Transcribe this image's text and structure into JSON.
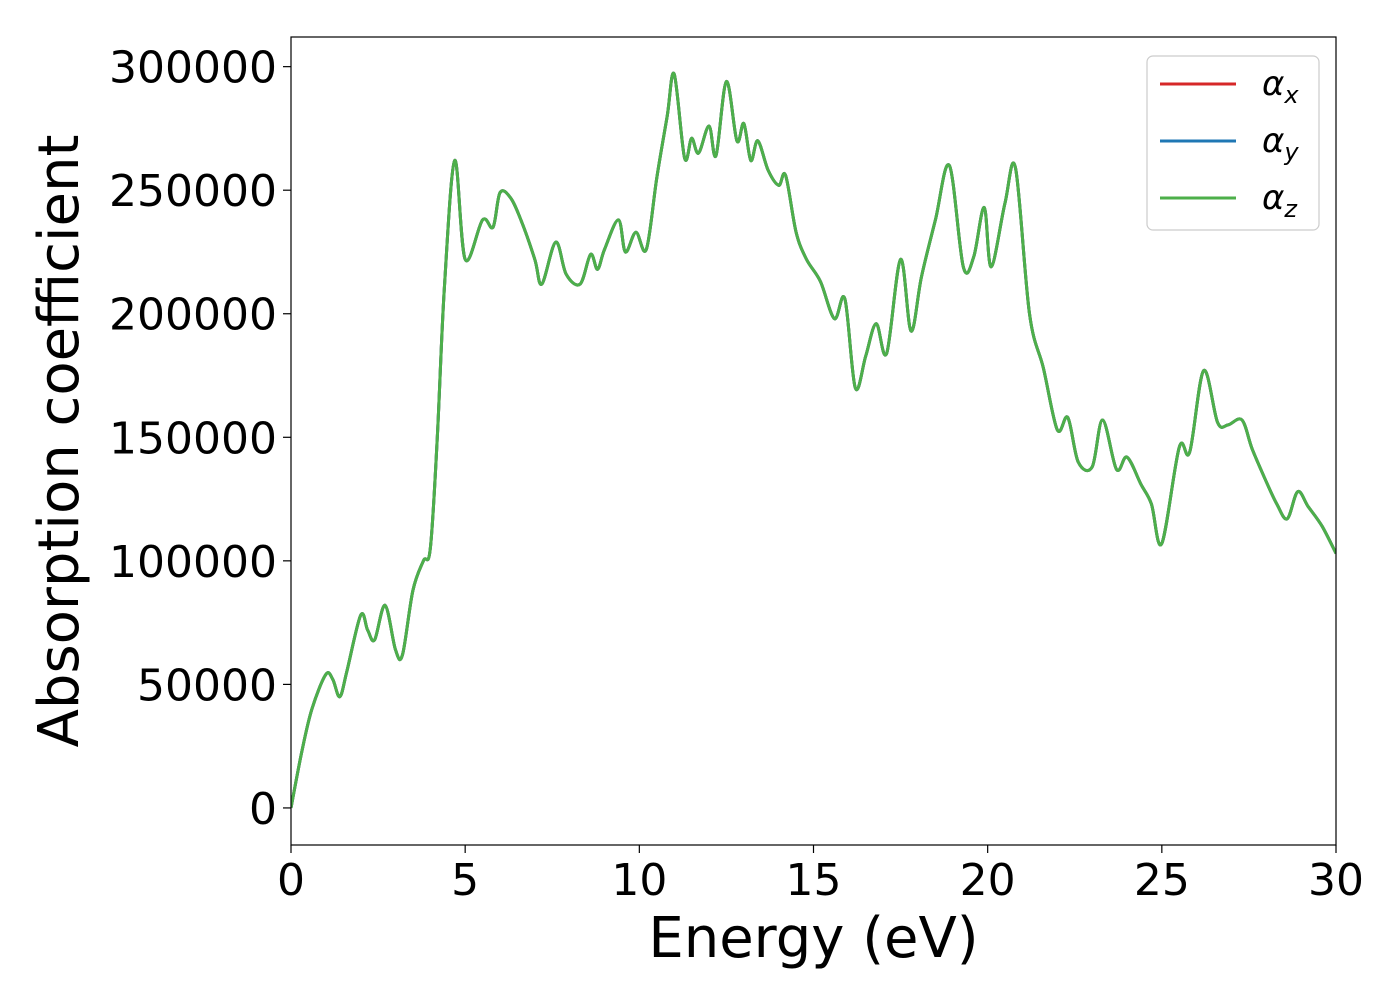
{
  "chart_data": {
    "type": "line",
    "title": "",
    "xlabel": "Energy (eV)",
    "ylabel": "Absorption coefficient",
    "xlim": [
      0,
      30
    ],
    "ylim": [
      -15000,
      312000
    ],
    "xticks": [
      0,
      5,
      10,
      15,
      20,
      25,
      30
    ],
    "yticks": [
      0,
      50000,
      100000,
      150000,
      200000,
      250000,
      300000
    ],
    "xtick_labels": [
      "0",
      "5",
      "10",
      "15",
      "20",
      "25",
      "30"
    ],
    "ytick_labels": [
      "0",
      "50000",
      "100000",
      "150000",
      "200000",
      "250000",
      "300000"
    ],
    "grid": false,
    "legend_position": "top-right",
    "legend": [
      {
        "symbol": "α",
        "subscript": "x",
        "color": "#d62728"
      },
      {
        "symbol": "α",
        "subscript": "y",
        "color": "#1f77b4"
      },
      {
        "symbol": "α",
        "subscript": "z",
        "color": "#4daf4a"
      }
    ],
    "series": [
      {
        "name": "αx",
        "color": "#d62728",
        "x": [
          0,
          0.3,
          0.6,
          1.0,
          1.2,
          1.4,
          1.6,
          2.0,
          2.2,
          2.4,
          2.7,
          3.0,
          3.2,
          3.5,
          3.8,
          4.0,
          4.2,
          4.4,
          4.7,
          5.0,
          5.5,
          5.8,
          6.0,
          6.3,
          6.6,
          7.0,
          7.2,
          7.6,
          7.9,
          8.3,
          8.6,
          8.8,
          9.0,
          9.4,
          9.6,
          9.9,
          10.2,
          10.5,
          10.8,
          11.0,
          11.3,
          11.5,
          11.7,
          12.0,
          12.2,
          12.5,
          12.8,
          13.0,
          13.2,
          13.4,
          13.7,
          14.0,
          14.2,
          14.5,
          14.8,
          15.2,
          15.6,
          15.9,
          16.2,
          16.5,
          16.8,
          17.1,
          17.5,
          17.8,
          18.1,
          18.5,
          18.9,
          19.3,
          19.6,
          19.9,
          20.1,
          20.5,
          20.8,
          21.2,
          21.6,
          22.0,
          22.3,
          22.6,
          23.0,
          23.3,
          23.7,
          24.0,
          24.4,
          24.7,
          25.0,
          25.5,
          25.8,
          26.2,
          26.6,
          26.9,
          27.3,
          27.6,
          28.0,
          28.3,
          28.6,
          28.9,
          29.2,
          29.6,
          30.0
        ],
        "y": [
          0,
          22000,
          40000,
          54000,
          52000,
          45000,
          55000,
          78000,
          72000,
          68000,
          82000,
          64000,
          62000,
          88000,
          100000,
          105000,
          150000,
          210000,
          262000,
          222000,
          238000,
          235000,
          249000,
          247000,
          238000,
          222000,
          212000,
          229000,
          216000,
          212000,
          224000,
          218000,
          226000,
          238000,
          225000,
          233000,
          226000,
          255000,
          280000,
          297000,
          263000,
          271000,
          265000,
          276000,
          264000,
          294000,
          270000,
          277000,
          262000,
          270000,
          258000,
          252000,
          256000,
          233000,
          222000,
          213000,
          198000,
          206000,
          170000,
          183000,
          196000,
          184000,
          222000,
          193000,
          215000,
          238000,
          260000,
          219000,
          223000,
          243000,
          219000,
          245000,
          259000,
          200000,
          178000,
          153000,
          158000,
          140000,
          138000,
          157000,
          137000,
          142000,
          131000,
          123000,
          107000,
          146000,
          144000,
          177000,
          156000,
          155000,
          157000,
          145000,
          132000,
          123000,
          117000,
          128000,
          122000,
          114000,
          103000
        ]
      },
      {
        "name": "αy",
        "color": "#1f77b4",
        "x": [
          0,
          0.3,
          0.6,
          1.0,
          1.2,
          1.4,
          1.6,
          2.0,
          2.2,
          2.4,
          2.7,
          3.0,
          3.2,
          3.5,
          3.8,
          4.0,
          4.2,
          4.4,
          4.7,
          5.0,
          5.5,
          5.8,
          6.0,
          6.3,
          6.6,
          7.0,
          7.2,
          7.6,
          7.9,
          8.3,
          8.6,
          8.8,
          9.0,
          9.4,
          9.6,
          9.9,
          10.2,
          10.5,
          10.8,
          11.0,
          11.3,
          11.5,
          11.7,
          12.0,
          12.2,
          12.5,
          12.8,
          13.0,
          13.2,
          13.4,
          13.7,
          14.0,
          14.2,
          14.5,
          14.8,
          15.2,
          15.6,
          15.9,
          16.2,
          16.5,
          16.8,
          17.1,
          17.5,
          17.8,
          18.1,
          18.5,
          18.9,
          19.3,
          19.6,
          19.9,
          20.1,
          20.5,
          20.8,
          21.2,
          21.6,
          22.0,
          22.3,
          22.6,
          23.0,
          23.3,
          23.7,
          24.0,
          24.4,
          24.7,
          25.0,
          25.5,
          25.8,
          26.2,
          26.6,
          26.9,
          27.3,
          27.6,
          28.0,
          28.3,
          28.6,
          28.9,
          29.2,
          29.6,
          30.0
        ],
        "y": [
          0,
          22000,
          40000,
          54000,
          52000,
          45000,
          55000,
          78000,
          72000,
          68000,
          82000,
          64000,
          62000,
          88000,
          100000,
          105000,
          150000,
          210000,
          262000,
          222000,
          238000,
          235000,
          249000,
          247000,
          238000,
          222000,
          212000,
          229000,
          216000,
          212000,
          224000,
          218000,
          226000,
          238000,
          225000,
          233000,
          226000,
          255000,
          280000,
          297000,
          263000,
          271000,
          265000,
          276000,
          264000,
          294000,
          270000,
          277000,
          262000,
          270000,
          258000,
          252000,
          256000,
          233000,
          222000,
          213000,
          198000,
          206000,
          170000,
          183000,
          196000,
          184000,
          222000,
          193000,
          215000,
          238000,
          260000,
          219000,
          223000,
          243000,
          219000,
          245000,
          259000,
          200000,
          178000,
          153000,
          158000,
          140000,
          138000,
          157000,
          137000,
          142000,
          131000,
          123000,
          107000,
          146000,
          144000,
          177000,
          156000,
          155000,
          157000,
          145000,
          132000,
          123000,
          117000,
          128000,
          122000,
          114000,
          103000
        ]
      },
      {
        "name": "αz",
        "color": "#4daf4a",
        "x": [
          0,
          0.3,
          0.6,
          1.0,
          1.2,
          1.4,
          1.6,
          2.0,
          2.2,
          2.4,
          2.7,
          3.0,
          3.2,
          3.5,
          3.8,
          4.0,
          4.2,
          4.4,
          4.7,
          5.0,
          5.5,
          5.8,
          6.0,
          6.3,
          6.6,
          7.0,
          7.2,
          7.6,
          7.9,
          8.3,
          8.6,
          8.8,
          9.0,
          9.4,
          9.6,
          9.9,
          10.2,
          10.5,
          10.8,
          11.0,
          11.3,
          11.5,
          11.7,
          12.0,
          12.2,
          12.5,
          12.8,
          13.0,
          13.2,
          13.4,
          13.7,
          14.0,
          14.2,
          14.5,
          14.8,
          15.2,
          15.6,
          15.9,
          16.2,
          16.5,
          16.8,
          17.1,
          17.5,
          17.8,
          18.1,
          18.5,
          18.9,
          19.3,
          19.6,
          19.9,
          20.1,
          20.5,
          20.8,
          21.2,
          21.6,
          22.0,
          22.3,
          22.6,
          23.0,
          23.3,
          23.7,
          24.0,
          24.4,
          24.7,
          25.0,
          25.5,
          25.8,
          26.2,
          26.6,
          26.9,
          27.3,
          27.6,
          28.0,
          28.3,
          28.6,
          28.9,
          29.2,
          29.6,
          30.0
        ],
        "y": [
          0,
          22000,
          40000,
          54000,
          52000,
          45000,
          55000,
          78000,
          72000,
          68000,
          82000,
          64000,
          62000,
          88000,
          100000,
          105000,
          150000,
          210000,
          262000,
          222000,
          238000,
          235000,
          249000,
          247000,
          238000,
          222000,
          212000,
          229000,
          216000,
          212000,
          224000,
          218000,
          226000,
          238000,
          225000,
          233000,
          226000,
          255000,
          280000,
          297000,
          263000,
          271000,
          265000,
          276000,
          264000,
          294000,
          270000,
          277000,
          262000,
          270000,
          258000,
          252000,
          256000,
          233000,
          222000,
          213000,
          198000,
          206000,
          170000,
          183000,
          196000,
          184000,
          222000,
          193000,
          215000,
          238000,
          260000,
          219000,
          223000,
          243000,
          219000,
          245000,
          259000,
          200000,
          178000,
          153000,
          158000,
          140000,
          138000,
          157000,
          137000,
          142000,
          131000,
          123000,
          107000,
          146000,
          144000,
          177000,
          156000,
          155000,
          157000,
          145000,
          132000,
          123000,
          117000,
          128000,
          122000,
          114000,
          103000
        ]
      }
    ]
  }
}
